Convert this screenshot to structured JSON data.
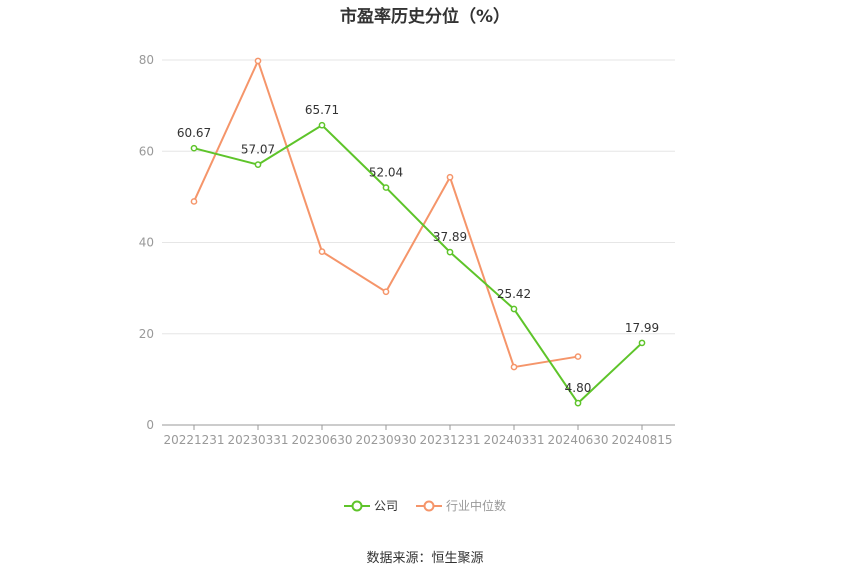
{
  "chart_data": {
    "type": "line",
    "title": "市盈率历史分位（%）",
    "categories": [
      "20221231",
      "20230331",
      "20230630",
      "20230930",
      "20231231",
      "20240331",
      "20240630",
      "20240815"
    ],
    "series": [
      {
        "name": "公司",
        "color": "#5ec42a",
        "values": [
          60.67,
          57.07,
          65.71,
          52.04,
          37.89,
          25.42,
          4.8,
          17.99
        ],
        "labels": [
          "60.67",
          "57.07",
          "65.71",
          "52.04",
          "37.89",
          "25.42",
          "4.80",
          "17.99"
        ]
      },
      {
        "name": "行业中位数",
        "color": "#f5956a",
        "values": [
          49,
          79.8,
          38,
          29.2,
          54.3,
          12.7,
          15,
          null
        ]
      }
    ],
    "ylim": [
      0,
      80
    ],
    "yticks": [
      "0",
      "20",
      "40",
      "60",
      "80"
    ],
    "grid": true,
    "legend_position": "bottom"
  },
  "source_text": "数据来源：恒生聚源"
}
